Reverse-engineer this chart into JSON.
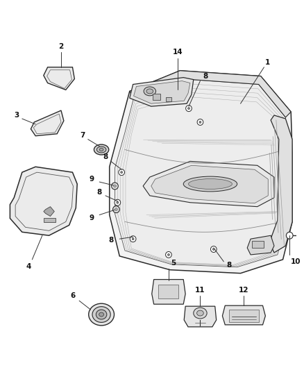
{
  "bg": "#ffffff",
  "fw": 4.38,
  "fh": 5.33,
  "dpi": 100,
  "line_color": "#2a2a2a",
  "light_color": "#888888",
  "fill_light": "#f5f5f5",
  "fill_mid": "#e8e8e8",
  "fill_dark": "#d0d0d0"
}
